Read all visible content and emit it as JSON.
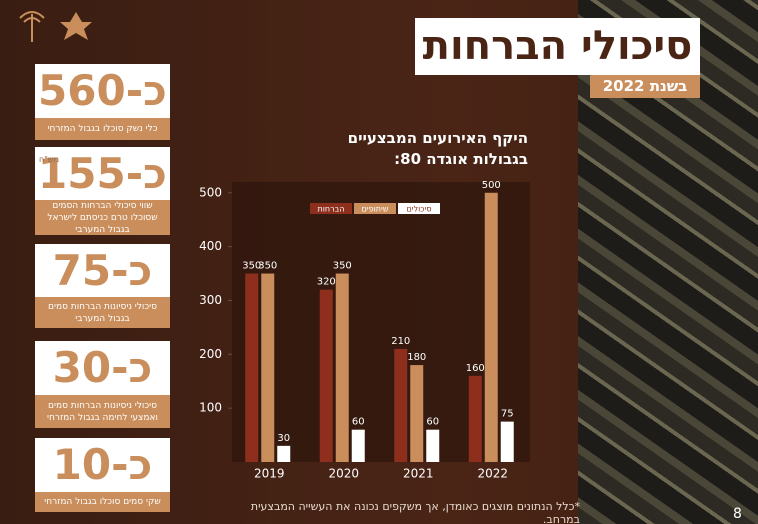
{
  "header": {
    "title": "סיכולי הברחות",
    "subtitle": "בשנת 2022"
  },
  "stats": [
    {
      "value": "כ-560",
      "caption": "כלי נשק סוכלו בגבול המזרחי"
    },
    {
      "value": "כ-155",
      "unit": "מש\"ח",
      "caption": "שווי סיכולי הברחות הסמים שסוכלו טרם כניסתם לישראל בגבול המערבי"
    },
    {
      "value": "כ-75",
      "caption": "סיכולי ניסיונות הברחות סמים בגבול המערבי"
    },
    {
      "value": "כ-30",
      "caption": "סיכולי ניסיונות הברחות סמים ואמצעי לחימה בגבול המזרחי"
    },
    {
      "value": "כ-10",
      "caption": "שקי סמים סוכלו בגבול המזרחי"
    }
  ],
  "chart_data": {
    "type": "bar",
    "title": "היקף האירועים המבצעיים בגבולות אוגדה 80:",
    "categories": [
      "2019",
      "2020",
      "2021",
      "2022"
    ],
    "series": [
      {
        "name": "הברחות",
        "color": "#8e2f1e",
        "values": [
          350,
          320,
          210,
          160
        ]
      },
      {
        "name": "שיתופים",
        "color": "#c98e5b",
        "values": [
          350,
          350,
          180,
          500
        ]
      },
      {
        "name": "סיכולים",
        "color": "#ffffff",
        "values": [
          30,
          60,
          60,
          75
        ]
      }
    ],
    "ylim": [
      0,
      520
    ],
    "yticks": [
      100,
      200,
      300,
      400,
      500
    ]
  },
  "footnote": "*כלל הנתונים מוצגים כאומדן, אך משקפים נכונה את העשייה המבצעית במרחב.",
  "page_number": "8"
}
